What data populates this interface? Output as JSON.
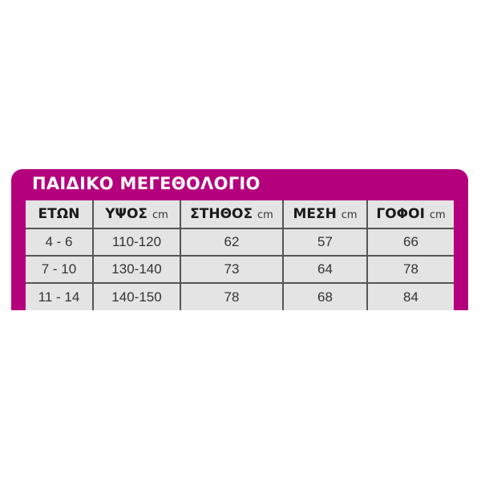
{
  "title": "ΠΑΙΔΙΚΟ ΜΕΓΕΘΟΛΟΓΙΟ",
  "accent_color": "#b5007e",
  "columns": [
    {
      "label": "ΕΤΩΝ",
      "unit": ""
    },
    {
      "label": "ΥΨΟΣ",
      "unit": "cm"
    },
    {
      "label": "ΣΤΗΘΟΣ",
      "unit": "cm"
    },
    {
      "label": "ΜΕΣΗ",
      "unit": "cm"
    },
    {
      "label": "ΓΟΦΟΙ",
      "unit": "cm"
    }
  ],
  "rows": [
    [
      "4 - 6",
      "110-120",
      "62",
      "57",
      "66"
    ],
    [
      "7 - 10",
      "130-140",
      "73",
      "64",
      "78"
    ],
    [
      "11 - 14",
      "140-150",
      "78",
      "68",
      "84"
    ]
  ]
}
